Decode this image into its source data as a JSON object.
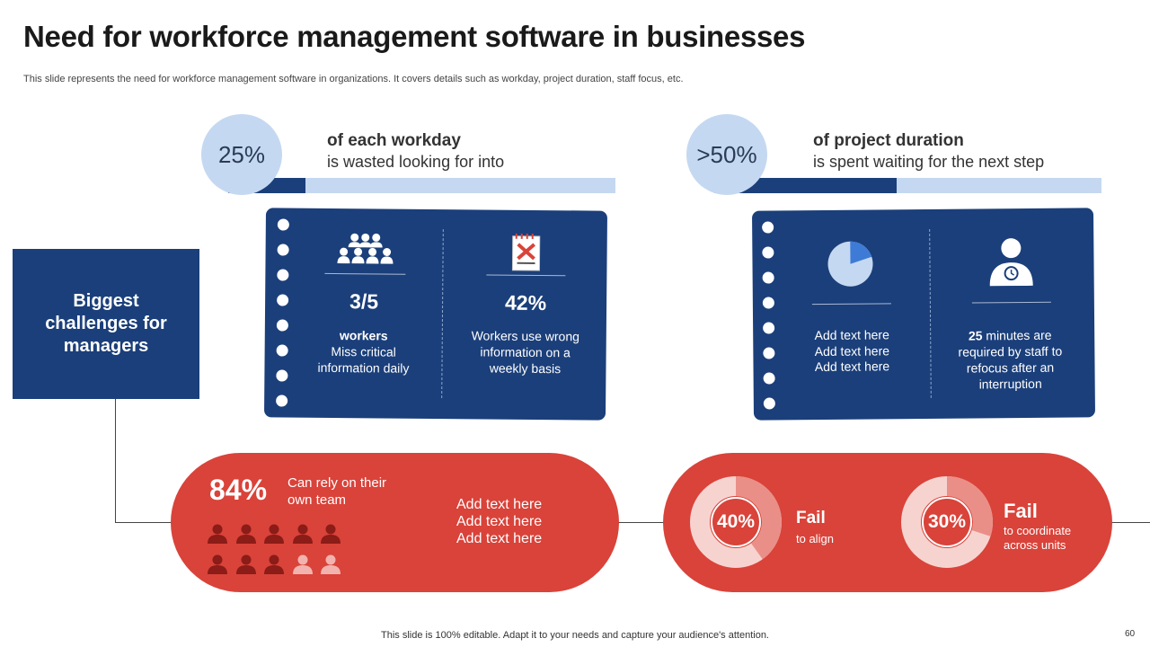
{
  "title": "Need for workforce management software in businesses",
  "subtitle": "This slide represents the need for workforce management software in organizations. It covers details such as workday, project duration, staff focus, etc.",
  "stats": [
    {
      "value": "25%",
      "heading": "of each workday",
      "sub": "is wasted looking for into",
      "fill_fraction": 0.2
    },
    {
      "value": ">50%",
      "heading": "of project duration",
      "sub": "is spent waiting for the next step",
      "fill_fraction": 0.47
    }
  ],
  "challenge_label": "Biggest challenges for managers",
  "panel_left": {
    "col1": {
      "value": "3/5",
      "bold": "workers",
      "text": "Miss critical information daily",
      "icon": "group-of-people-icon"
    },
    "col2": {
      "value": "42%",
      "text": "Workers use wrong information on a weekly basis",
      "icon": "crossed-document-icon"
    }
  },
  "panel_right": {
    "col1": {
      "lines": [
        "Add text here",
        "Add text here",
        "Add text here"
      ],
      "icon": "pie-chart-icon",
      "pie_fraction": 0.2
    },
    "col2": {
      "bold": "25",
      "text": " minutes are required by staff to refocus after an interruption",
      "icon": "person-refocus-icon"
    }
  },
  "pill_left": {
    "value": "84%",
    "caption": "Can rely on their own team",
    "lines": [
      "Add text here",
      "Add text here",
      "Add text here"
    ],
    "people_total": 10,
    "people_highlighted": 8
  },
  "pill_right": {
    "donuts": [
      {
        "value": "40%",
        "percent": 40,
        "heading": "Fail",
        "sub": "to align"
      },
      {
        "value": "30%",
        "percent": 30,
        "heading": "Fail",
        "sub": "to coordinate across units"
      }
    ]
  },
  "colors": {
    "navy": "#1b3f7a",
    "light_blue": "#c5d8f1",
    "red": "#d9433a",
    "dark_red": "#8b1c17",
    "pink": "#f2b3ae"
  },
  "footer": "This slide is 100% editable. Adapt it to your needs and capture your audience's attention.",
  "page_number": "60"
}
